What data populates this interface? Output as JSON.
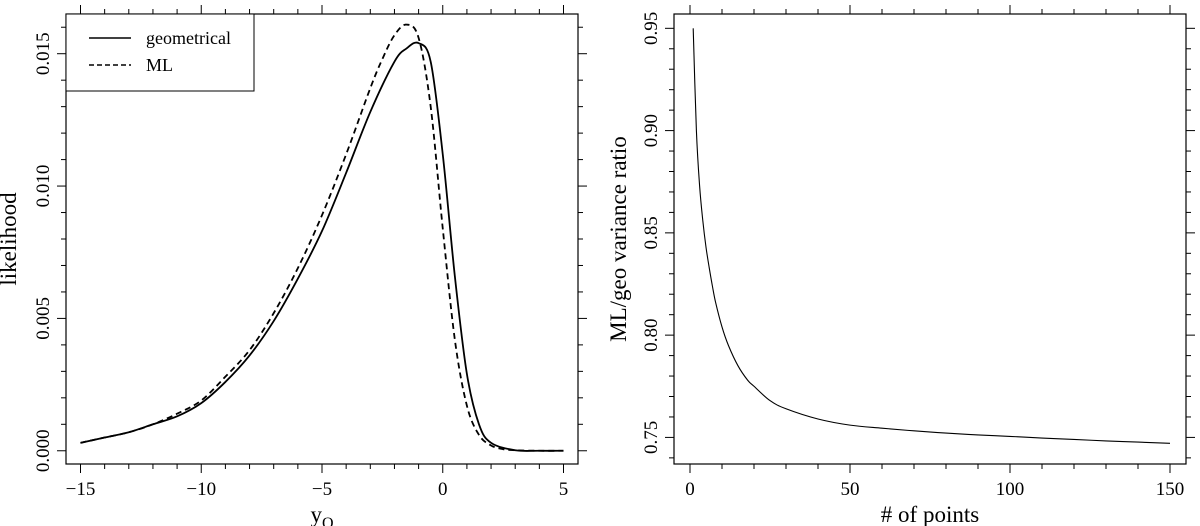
{
  "chart_data": [
    {
      "type": "line",
      "xlabel": "y",
      "xlabel_subscript": "Q",
      "ylabel": "likelihood",
      "xlim": [
        -15.6,
        5.6
      ],
      "ylim": [
        -0.0005,
        0.0165
      ],
      "xticks": [
        -15,
        -10,
        -5,
        0,
        5
      ],
      "xtick_labels": [
        "−15",
        "−10",
        "−5",
        "0",
        "5"
      ],
      "yticks": [
        0.0,
        0.005,
        0.01,
        0.015
      ],
      "ytick_labels": [
        "0.000",
        "0.005",
        "0.010",
        "0.015"
      ],
      "legend_position": "top-left",
      "series": [
        {
          "name": "geometrical",
          "line_style": "solid",
          "x": [
            -15,
            -14,
            -13,
            -12,
            -11,
            -10,
            -9,
            -8,
            -7,
            -6,
            -5,
            -4,
            -3,
            -2,
            -1.5,
            -1,
            -0.5,
            0,
            0.5,
            1,
            1.5,
            2,
            3,
            4,
            5
          ],
          "y": [
            0.0003,
            0.0005,
            0.0007,
            0.001,
            0.0013,
            0.0018,
            0.0026,
            0.0036,
            0.0049,
            0.0065,
            0.0083,
            0.0105,
            0.0128,
            0.0147,
            0.0152,
            0.0154,
            0.0147,
            0.0112,
            0.0066,
            0.0029,
            0.001,
            0.0003,
            2e-05,
            0.0,
            0.0
          ]
        },
        {
          "name": "ML",
          "line_style": "dashed",
          "x": [
            -15,
            -14,
            -13,
            -12,
            -11,
            -10,
            -9,
            -8,
            -7,
            -6,
            -5,
            -4,
            -3,
            -2.5,
            -2,
            -1.5,
            -1,
            -0.5,
            0,
            0.5,
            1,
            1.5,
            2,
            2.5,
            3,
            4,
            5
          ],
          "y": [
            0.0003,
            0.0005,
            0.0007,
            0.001,
            0.0014,
            0.0019,
            0.0028,
            0.0038,
            0.0052,
            0.0069,
            0.0089,
            0.0112,
            0.0137,
            0.0148,
            0.0157,
            0.0161,
            0.0156,
            0.013,
            0.0084,
            0.0042,
            0.0017,
            0.0006,
            0.0002,
            6e-05,
            2e-05,
            0.0,
            0.0
          ]
        }
      ]
    },
    {
      "type": "line",
      "xlabel": "# of points",
      "ylabel": "ML/geo variance ratio",
      "xlim": [
        -5,
        155
      ],
      "ylim": [
        0.737,
        0.957
      ],
      "xticks": [
        0,
        50,
        100,
        150
      ],
      "xtick_labels": [
        "0",
        "50",
        "100",
        "150"
      ],
      "yticks": [
        0.75,
        0.8,
        0.85,
        0.9,
        0.95
      ],
      "ytick_labels": [
        "0.75",
        "0.80",
        "0.85",
        "0.90",
        "0.95"
      ],
      "series": [
        {
          "line_style": "solid",
          "x": [
            1,
            2,
            3,
            4,
            5,
            6,
            7,
            8,
            10,
            12,
            15,
            18,
            20,
            25,
            30,
            40,
            50,
            60,
            70,
            80,
            90,
            100,
            110,
            120,
            130,
            140,
            150
          ],
          "y": [
            0.95,
            0.9,
            0.873,
            0.856,
            0.843,
            0.833,
            0.824,
            0.816,
            0.804,
            0.795,
            0.785,
            0.778,
            0.775,
            0.768,
            0.764,
            0.759,
            0.756,
            0.7545,
            0.7532,
            0.7521,
            0.7512,
            0.7505,
            0.7497,
            0.749,
            0.7483,
            0.7477,
            0.7471
          ]
        }
      ]
    }
  ]
}
